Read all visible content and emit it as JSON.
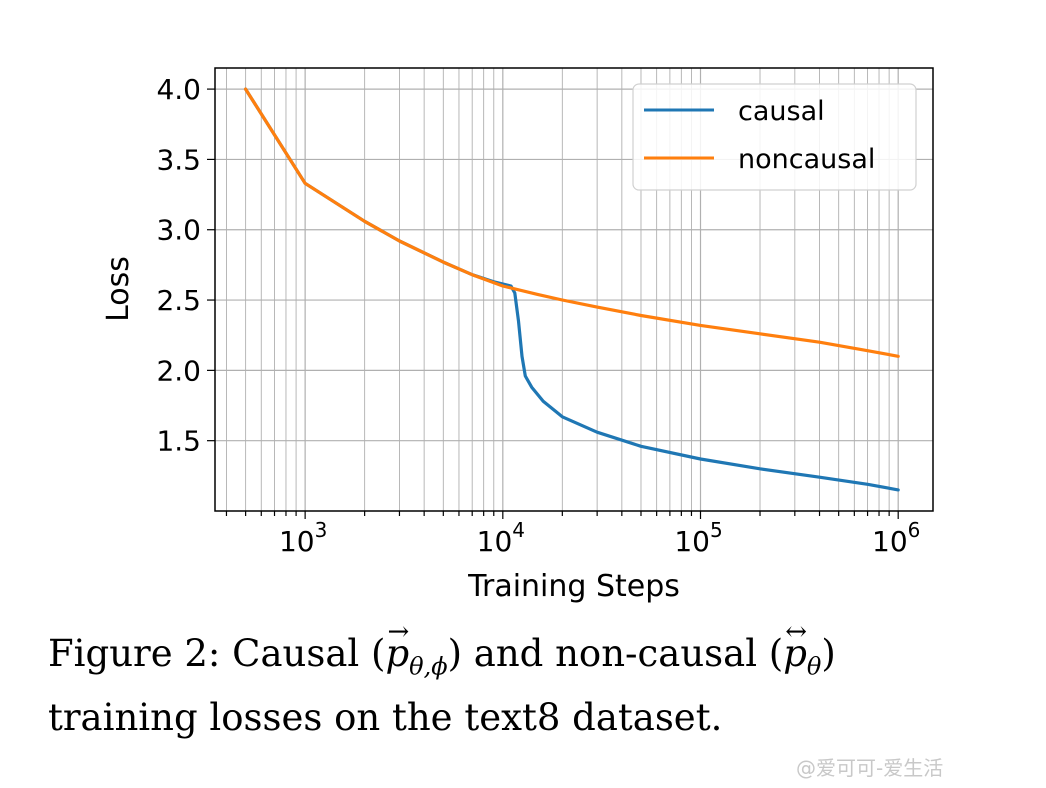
{
  "chart_data": {
    "type": "line",
    "xlabel": "Training Steps",
    "ylabel": "Loss",
    "xscale": "log",
    "xlim": [
      350,
      1500000
    ],
    "ylim": [
      1.0,
      4.15
    ],
    "grid": true,
    "legend_position": "top-right",
    "yticks": [
      {
        "value": 1.5,
        "label": "1.5"
      },
      {
        "value": 2.0,
        "label": "2.0"
      },
      {
        "value": 2.5,
        "label": "2.5"
      },
      {
        "value": 3.0,
        "label": "3.0"
      },
      {
        "value": 3.5,
        "label": "3.5"
      },
      {
        "value": 4.0,
        "label": "4.0"
      }
    ],
    "xticks": [
      {
        "value": 1000,
        "base": "10",
        "exp": "3"
      },
      {
        "value": 10000,
        "base": "10",
        "exp": "4"
      },
      {
        "value": 100000,
        "base": "10",
        "exp": "5"
      },
      {
        "value": 1000000,
        "base": "10",
        "exp": "6"
      }
    ],
    "series": [
      {
        "name": "causal",
        "color": "#1f77b4",
        "x": [
          500,
          1000,
          2000,
          3000,
          5000,
          7000,
          9000,
          11000,
          11500,
          12000,
          12500,
          13000,
          14000,
          16000,
          20000,
          30000,
          50000,
          100000,
          200000,
          400000,
          700000,
          1000000
        ],
        "y": [
          4.0,
          3.33,
          3.06,
          2.92,
          2.77,
          2.68,
          2.63,
          2.6,
          2.55,
          2.35,
          2.1,
          1.96,
          1.88,
          1.78,
          1.67,
          1.56,
          1.46,
          1.37,
          1.3,
          1.24,
          1.19,
          1.15
        ]
      },
      {
        "name": "noncausal",
        "color": "#ff7f0e",
        "x": [
          500,
          1000,
          2000,
          3000,
          5000,
          7000,
          10000,
          15000,
          20000,
          30000,
          50000,
          100000,
          200000,
          400000,
          700000,
          1000000
        ],
        "y": [
          4.0,
          3.33,
          3.06,
          2.92,
          2.77,
          2.68,
          2.6,
          2.54,
          2.5,
          2.45,
          2.39,
          2.32,
          2.26,
          2.2,
          2.14,
          2.1
        ]
      }
    ]
  },
  "caption": {
    "figure_label": "Figure 2:",
    "word_causal": "Causal",
    "math_causal": "p",
    "arrow_causal": "→",
    "sub_causal": "θ,ϕ",
    "middle": "and non-causal",
    "math_noncausal": "p",
    "arrow_noncausal": "↔",
    "sub_noncausal": "θ",
    "line2": "training losses on the text8 dataset."
  },
  "watermark": "@爱可可-爱生活"
}
